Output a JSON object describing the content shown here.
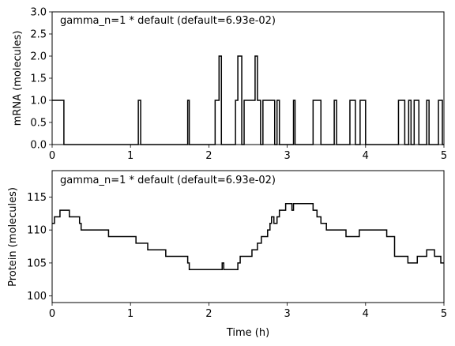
{
  "chart_data": [
    {
      "type": "line",
      "title": "",
      "annotation": "gamma_n=1 * default (default=6.93e-02)",
      "xlabel": "",
      "ylabel": "mRNA (molecules)",
      "xlim": [
        0,
        5
      ],
      "ylim": [
        0,
        3
      ],
      "xticks": [
        0,
        1,
        2,
        3,
        4,
        5
      ],
      "xtick_labels": [
        "0",
        "1",
        "2",
        "3",
        "4",
        "5"
      ],
      "yticks": [
        0,
        0.5,
        1,
        1.5,
        2,
        2.5,
        3
      ],
      "ytick_labels": [
        "0.0",
        "0.5",
        "1.0",
        "1.5",
        "2.0",
        "2.5",
        "3.0"
      ],
      "grid": false,
      "step": true,
      "series": [
        {
          "color": "#000000",
          "x": [
            0,
            0.15,
            1.1,
            1.13,
            1.73,
            1.75,
            2.08,
            2.13,
            2.16,
            2.34,
            2.37,
            2.42,
            2.45,
            2.59,
            2.62,
            2.66,
            2.69,
            2.72,
            2.84,
            2.87,
            2.9,
            3.08,
            3.1,
            3.33,
            3.43,
            3.6,
            3.63,
            3.8,
            3.87,
            3.93,
            4.0,
            4.42,
            4.5,
            4.55,
            4.58,
            4.62,
            4.68,
            4.78,
            4.81,
            4.93,
            4.98
          ],
          "y": [
            1,
            0,
            1,
            0,
            1,
            0,
            1,
            2,
            0,
            1,
            2,
            0,
            1,
            2,
            1,
            0,
            1,
            1,
            0,
            1,
            0,
            1,
            0,
            1,
            0,
            1,
            0,
            1,
            0,
            1,
            0,
            1,
            0,
            1,
            0,
            1,
            0,
            1,
            0,
            1,
            0
          ]
        }
      ]
    },
    {
      "type": "line",
      "title": "",
      "annotation": "gamma_n=1 * default (default=6.93e-02)",
      "xlabel": "Time (h)",
      "ylabel": "Protein (molecules)",
      "xlim": [
        0,
        5
      ],
      "ylim": [
        99,
        119
      ],
      "xticks": [
        0,
        1,
        2,
        3,
        4,
        5
      ],
      "xtick_labels": [
        "0",
        "1",
        "2",
        "3",
        "4",
        "5"
      ],
      "yticks": [
        100,
        105,
        110,
        115
      ],
      "ytick_labels": [
        "100",
        "105",
        "110",
        "115"
      ],
      "grid": false,
      "step": true,
      "series": [
        {
          "color": "#000000",
          "x": [
            0,
            0.03,
            0.1,
            0.22,
            0.35,
            0.37,
            0.72,
            1.07,
            1.22,
            1.45,
            1.73,
            1.75,
            2.17,
            2.19,
            2.37,
            2.4,
            2.55,
            2.62,
            2.67,
            2.75,
            2.78,
            2.8,
            2.83,
            2.87,
            2.9,
            2.98,
            3.06,
            3.08,
            3.33,
            3.38,
            3.43,
            3.5,
            3.53,
            3.75,
            3.92,
            3.97,
            4.0,
            4.27,
            4.37,
            4.54,
            4.66,
            4.78,
            4.88,
            4.96,
            5.0
          ],
          "y": [
            111,
            112,
            113,
            112,
            111,
            110,
            109,
            108,
            107,
            106,
            105,
            104,
            105,
            104,
            105,
            106,
            107,
            108,
            109,
            110,
            111,
            112,
            111,
            112,
            113,
            114,
            113,
            114,
            113,
            112,
            111,
            110,
            110,
            109,
            110,
            110,
            110,
            109,
            106,
            105,
            106,
            107,
            106,
            105,
            105
          ]
        }
      ]
    }
  ]
}
